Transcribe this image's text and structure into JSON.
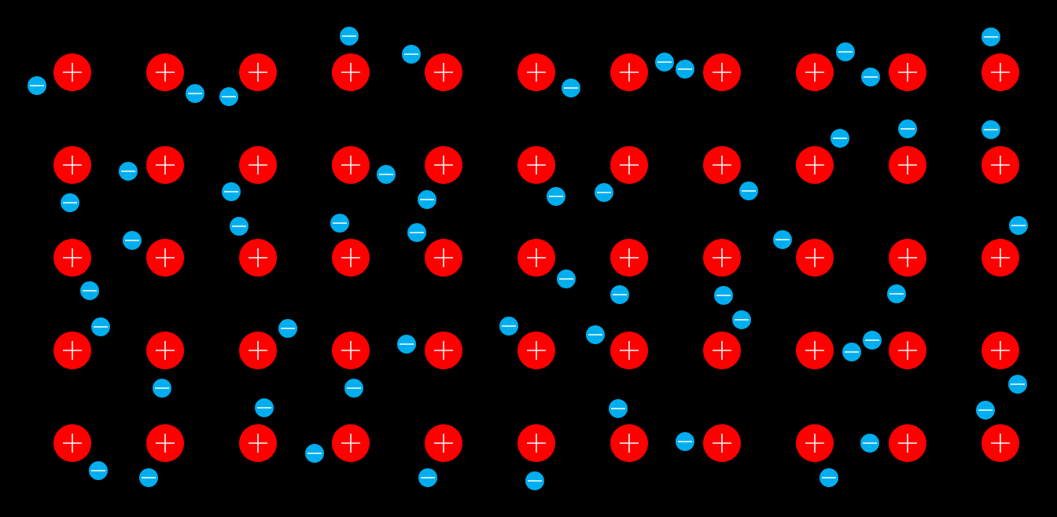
{
  "colors": {
    "background": "#000000",
    "positive_ion": "#ff0000",
    "positive_sign": "#ffffff",
    "electron": "#00aeef",
    "electron_sign": "#ffffff"
  },
  "icons": {
    "positive_ion": "plus-circle-icon",
    "electron": "minus-circle-icon"
  },
  "lattice": {
    "rows": 5,
    "columns": 11
  },
  "electron_count": 59
}
